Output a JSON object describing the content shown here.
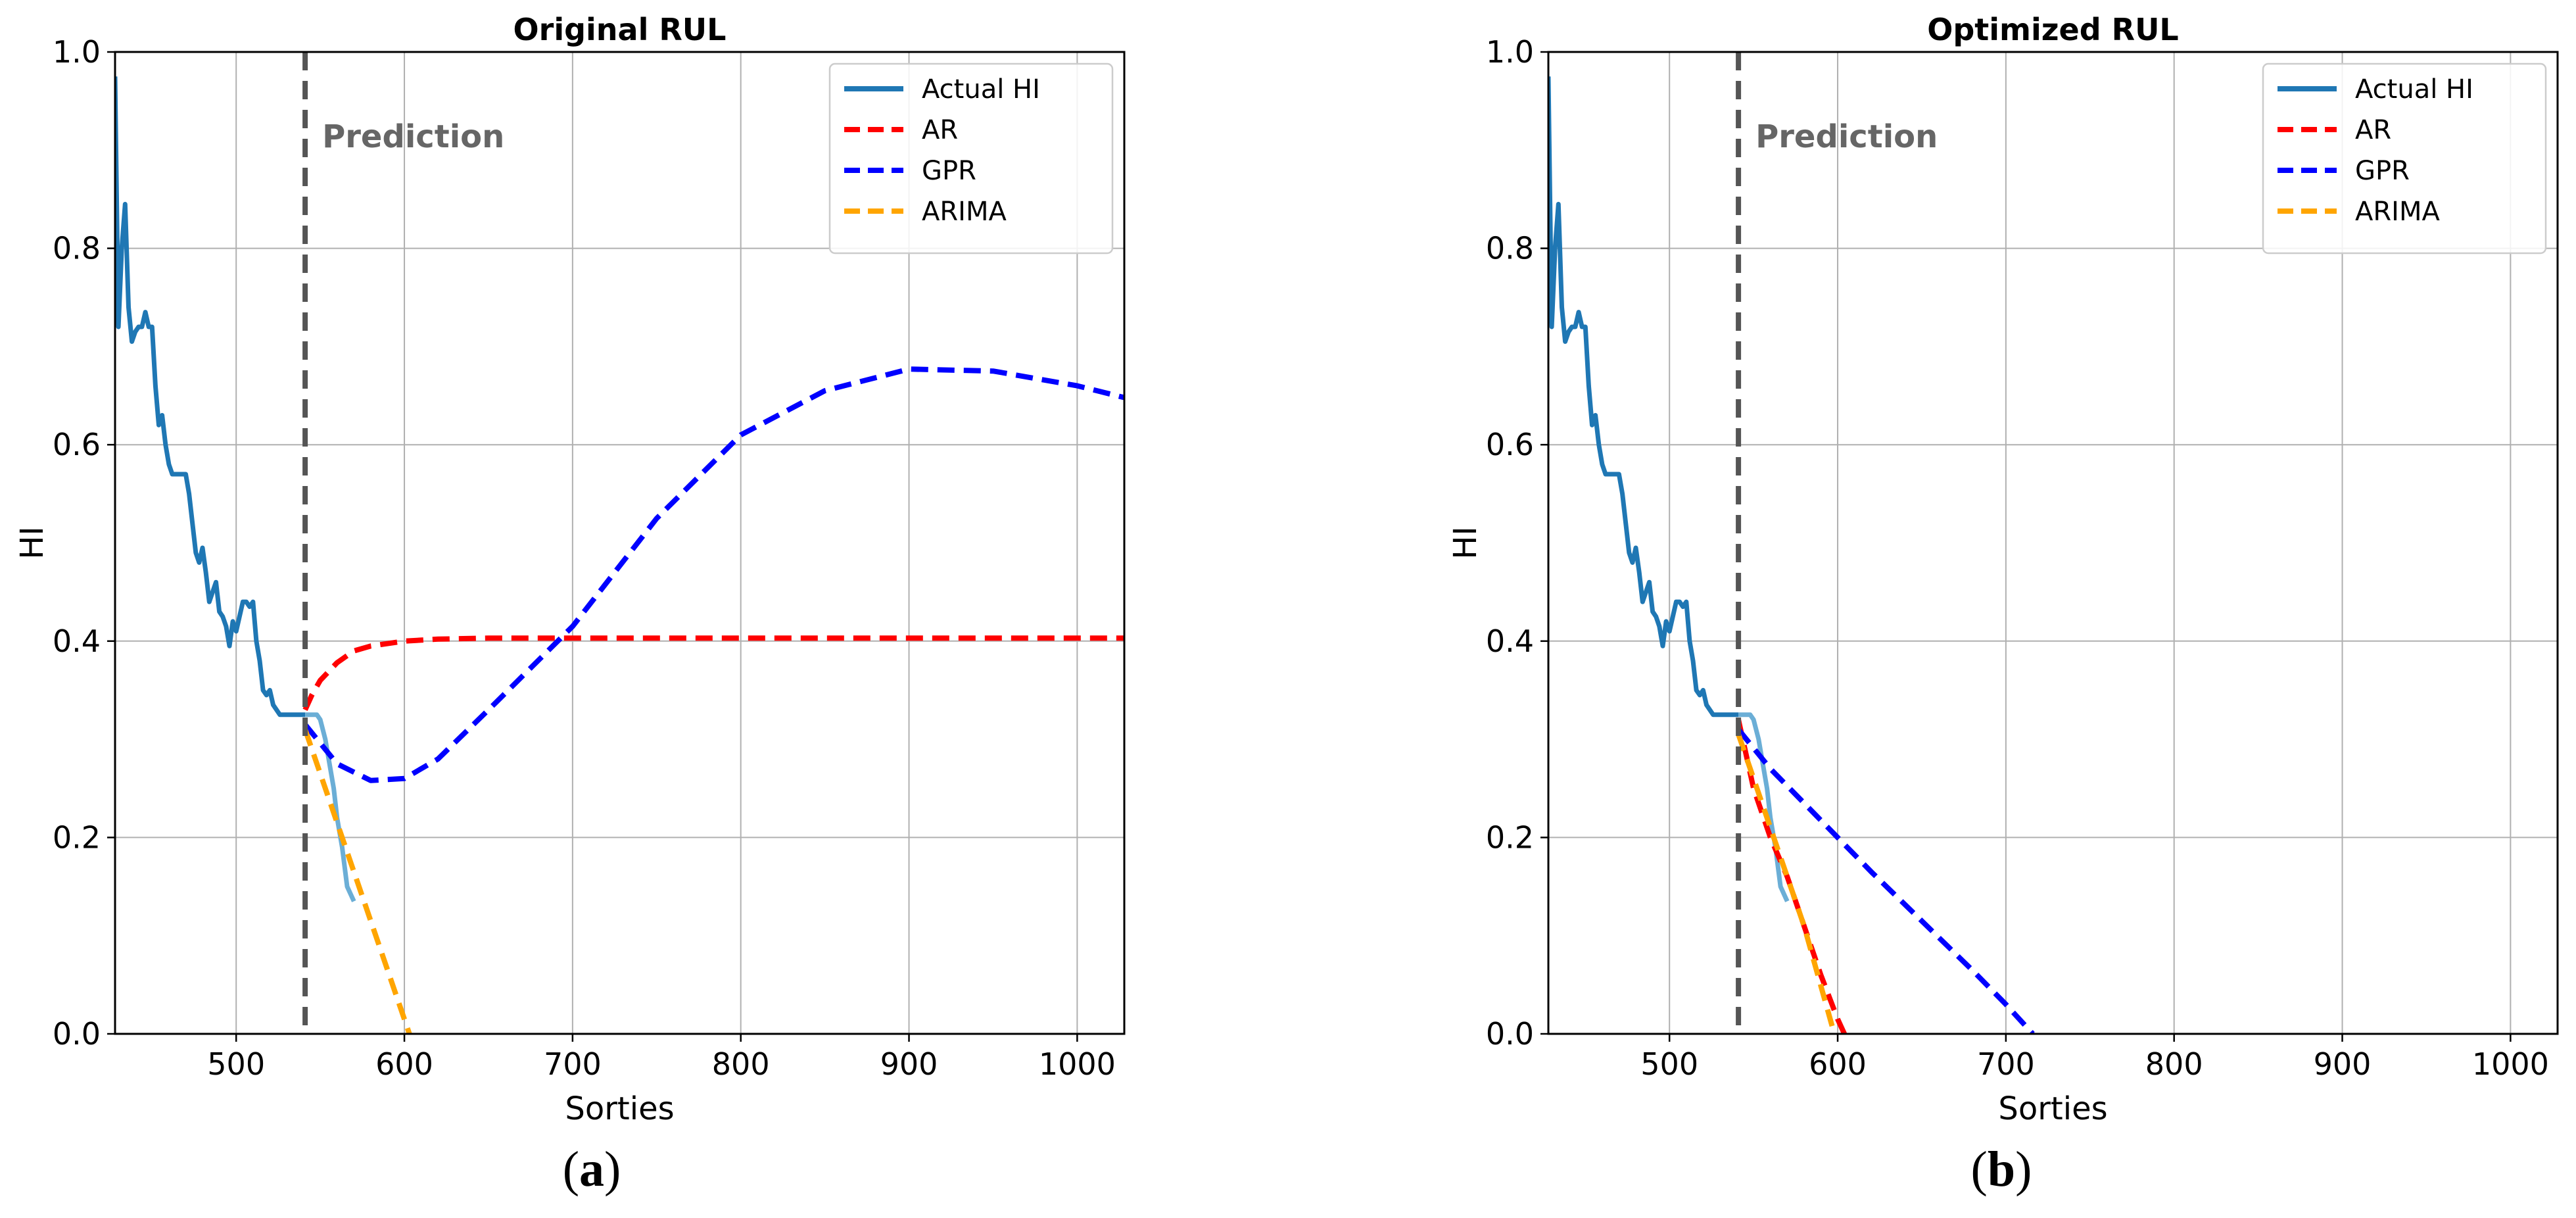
{
  "chart_data": [
    {
      "type": "line",
      "panel": "a",
      "caption_letter": "a",
      "title": "Original RUL",
      "xlabel": "Sorties",
      "ylabel": "HI",
      "xlim": [
        428,
        1028
      ],
      "ylim": [
        0.0,
        1.0
      ],
      "xticks": [
        500,
        600,
        700,
        800,
        900,
        1000
      ],
      "yticks": [
        0.0,
        0.2,
        0.4,
        0.6,
        0.8,
        1.0
      ],
      "grid": true,
      "legend_position": "top-right",
      "vline": {
        "x": 541,
        "label": "Prediction",
        "color": "#555555"
      },
      "series": [
        {
          "name": "Actual HI",
          "color": "#1f77b4",
          "style": "solid",
          "x": [
            428,
            430,
            432,
            434,
            436,
            438,
            440,
            442,
            444,
            446,
            448,
            450,
            452,
            454,
            456,
            458,
            460,
            462,
            464,
            466,
            468,
            470,
            472,
            474,
            476,
            478,
            480,
            482,
            484,
            486,
            488,
            490,
            492,
            494,
            496,
            498,
            500,
            502,
            504,
            506,
            508,
            510,
            512,
            514,
            516,
            518,
            520,
            522,
            524,
            526,
            528,
            530,
            535,
            541
          ],
          "y": [
            0.975,
            0.72,
            0.8,
            0.845,
            0.74,
            0.705,
            0.715,
            0.72,
            0.72,
            0.735,
            0.72,
            0.72,
            0.66,
            0.62,
            0.63,
            0.6,
            0.58,
            0.57,
            0.57,
            0.57,
            0.57,
            0.57,
            0.55,
            0.52,
            0.49,
            0.48,
            0.495,
            0.47,
            0.44,
            0.45,
            0.46,
            0.43,
            0.425,
            0.415,
            0.395,
            0.42,
            0.41,
            0.425,
            0.44,
            0.44,
            0.435,
            0.44,
            0.4,
            0.38,
            0.35,
            0.345,
            0.35,
            0.335,
            0.33,
            0.325,
            0.325,
            0.325,
            0.325,
            0.325
          ]
        },
        {
          "name": "Actual HI (test)",
          "color": "#6baed6",
          "style": "solid",
          "legend": false,
          "x": [
            541,
            545,
            548,
            550,
            553,
            555,
            558,
            560,
            563,
            566,
            570
          ],
          "y": [
            0.325,
            0.325,
            0.325,
            0.32,
            0.3,
            0.28,
            0.25,
            0.22,
            0.19,
            0.15,
            0.135
          ]
        },
        {
          "name": "AR",
          "color": "#ff0000",
          "style": "dashed",
          "x": [
            541,
            545,
            550,
            560,
            570,
            580,
            600,
            620,
            650,
            700,
            800,
            900,
            1028
          ],
          "y": [
            0.33,
            0.345,
            0.36,
            0.378,
            0.39,
            0.395,
            0.4,
            0.402,
            0.403,
            0.403,
            0.403,
            0.403,
            0.403
          ]
        },
        {
          "name": "GPR",
          "color": "#0000ff",
          "style": "dashed",
          "x": [
            541,
            560,
            580,
            600,
            620,
            650,
            700,
            750,
            800,
            850,
            900,
            950,
            1000,
            1028
          ],
          "y": [
            0.315,
            0.275,
            0.258,
            0.26,
            0.28,
            0.33,
            0.415,
            0.525,
            0.61,
            0.655,
            0.677,
            0.675,
            0.66,
            0.648
          ]
        },
        {
          "name": "ARIMA",
          "color": "#ffa500",
          "style": "dashed",
          "x": [
            541,
            560,
            580,
            600,
            603
          ],
          "y": [
            0.31,
            0.215,
            0.115,
            0.015,
            0.0
          ]
        }
      ]
    },
    {
      "type": "line",
      "panel": "b",
      "caption_letter": "b",
      "title": "Optimized RUL",
      "xlabel": "Sorties",
      "ylabel": "HI",
      "xlim": [
        428,
        1028
      ],
      "ylim": [
        0.0,
        1.0
      ],
      "xticks": [
        500,
        600,
        700,
        800,
        900,
        1000
      ],
      "yticks": [
        0.0,
        0.2,
        0.4,
        0.6,
        0.8,
        1.0
      ],
      "grid": true,
      "legend_position": "top-right",
      "vline": {
        "x": 541,
        "label": "Prediction",
        "color": "#555555"
      },
      "series": [
        {
          "name": "Actual HI",
          "color": "#1f77b4",
          "style": "solid",
          "x": [
            428,
            430,
            432,
            434,
            436,
            438,
            440,
            442,
            444,
            446,
            448,
            450,
            452,
            454,
            456,
            458,
            460,
            462,
            464,
            466,
            468,
            470,
            472,
            474,
            476,
            478,
            480,
            482,
            484,
            486,
            488,
            490,
            492,
            494,
            496,
            498,
            500,
            502,
            504,
            506,
            508,
            510,
            512,
            514,
            516,
            518,
            520,
            522,
            524,
            526,
            528,
            530,
            535,
            541
          ],
          "y": [
            0.975,
            0.72,
            0.8,
            0.845,
            0.74,
            0.705,
            0.715,
            0.72,
            0.72,
            0.735,
            0.72,
            0.72,
            0.66,
            0.62,
            0.63,
            0.6,
            0.58,
            0.57,
            0.57,
            0.57,
            0.57,
            0.57,
            0.55,
            0.52,
            0.49,
            0.48,
            0.495,
            0.47,
            0.44,
            0.45,
            0.46,
            0.43,
            0.425,
            0.415,
            0.395,
            0.42,
            0.41,
            0.425,
            0.44,
            0.44,
            0.435,
            0.44,
            0.4,
            0.38,
            0.35,
            0.345,
            0.35,
            0.335,
            0.33,
            0.325,
            0.325,
            0.325,
            0.325,
            0.325
          ]
        },
        {
          "name": "Actual HI (test)",
          "color": "#6baed6",
          "style": "solid",
          "legend": false,
          "x": [
            541,
            545,
            548,
            550,
            553,
            555,
            558,
            560,
            563,
            566,
            570
          ],
          "y": [
            0.325,
            0.325,
            0.325,
            0.32,
            0.3,
            0.28,
            0.25,
            0.22,
            0.19,
            0.15,
            0.135
          ]
        },
        {
          "name": "AR",
          "color": "#ff0000",
          "style": "dashed",
          "x": [
            541,
            550,
            560,
            570,
            580,
            590,
            600,
            604
          ],
          "y": [
            0.32,
            0.25,
            0.2,
            0.16,
            0.11,
            0.06,
            0.015,
            0.0
          ]
        },
        {
          "name": "GPR",
          "color": "#0000ff",
          "style": "dashed",
          "x": [
            541,
            560,
            580,
            600,
            620,
            650,
            680,
            700,
            716
          ],
          "y": [
            0.31,
            0.27,
            0.235,
            0.2,
            0.165,
            0.115,
            0.065,
            0.03,
            0.0
          ]
        },
        {
          "name": "ARIMA",
          "color": "#ffa500",
          "style": "dashed",
          "x": [
            541,
            560,
            580,
            598
          ],
          "y": [
            0.305,
            0.21,
            0.11,
            0.0
          ]
        }
      ]
    }
  ]
}
